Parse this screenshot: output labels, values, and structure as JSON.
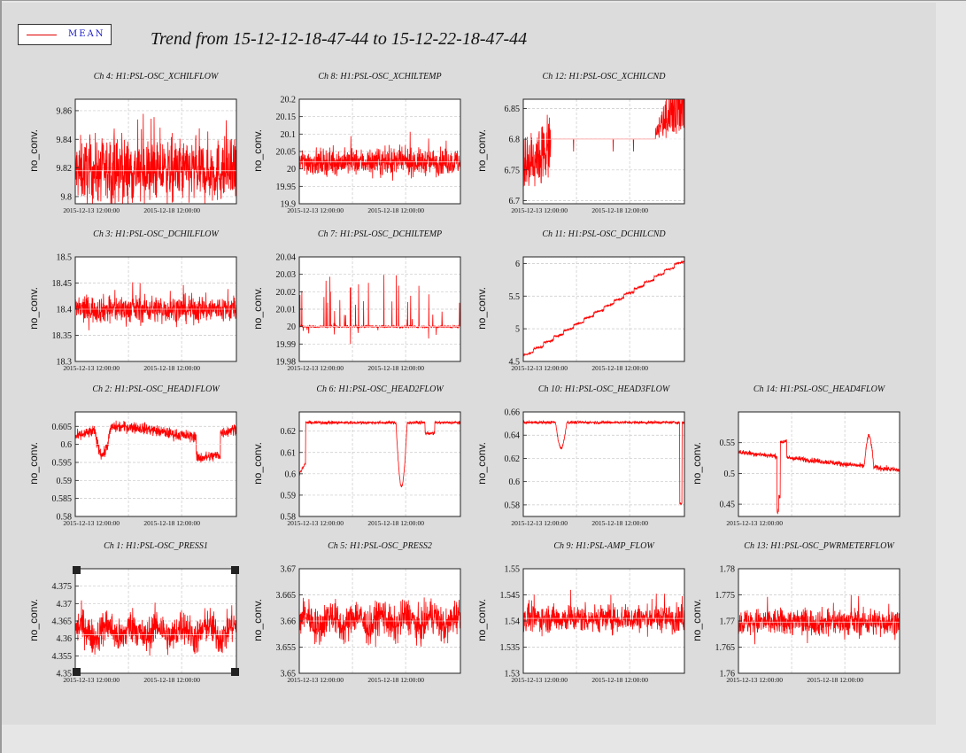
{
  "legend": {
    "label": "MEAN",
    "line_color": "#e00000"
  },
  "title": "Trend from 15-12-12-18-47-44 to 15-12-22-18-47-44",
  "colors": {
    "trace": "#ff0000",
    "mean": "#ffffff",
    "grid": "#c8c8c8"
  },
  "chart_data": [
    {
      "type": "line",
      "title": "Ch 4: H1:PSL-OSC_XCHILFLOW",
      "ylabel": "no_conv.",
      "ylim": [
        9.795,
        9.868
      ],
      "yticks": [
        "9.86",
        "9.84",
        "9.82",
        "9.8"
      ],
      "ytick_values": [
        9.86,
        9.84,
        9.82,
        9.8
      ],
      "xticks": [
        "2015-12-13 12:00:00",
        "2015-12-18 12:00:00"
      ],
      "pattern": "noise",
      "center": 9.818,
      "spread": 0.03,
      "mean": 9.818
    },
    {
      "type": "line",
      "title": "Ch 8: H1:PSL-OSC_XCHILTEMP",
      "ylabel": "no_conv.",
      "ylim": [
        19.9,
        20.2
      ],
      "yticks": [
        "20.2",
        "20.15",
        "20.1",
        "20.05",
        "20",
        "19.95",
        "19.9"
      ],
      "ytick_values": [
        20.2,
        20.15,
        20.1,
        20.05,
        20,
        19.95,
        19.9
      ],
      "xticks": [
        "2015-12-13 12:00:00",
        "2015-12-18 12:00:00"
      ],
      "pattern": "noise",
      "center": 20.02,
      "spread": 0.05,
      "mean": 20.02
    },
    {
      "type": "line",
      "title": "Ch 12: H1:PSL-OSC_XCHILCND",
      "ylabel": "no_conv.",
      "ylim": [
        6.695,
        6.865
      ],
      "yticks": [
        "6.85",
        "6.8",
        "6.75",
        "6.7"
      ],
      "ytick_values": [
        6.85,
        6.8,
        6.75,
        6.7
      ],
      "xticks": [
        "2015-12-13 12:00:00",
        "2015-12-18 12:00:00"
      ],
      "pattern": "step_cnd",
      "mean": 6.8
    },
    {
      "type": "line",
      "title": "Ch 3: H1:PSL-OSC_DCHILFLOW",
      "ylabel": "no_conv.",
      "ylim": [
        18.3,
        18.5
      ],
      "yticks": [
        "18.5",
        "18.45",
        "18.4",
        "18.35",
        "18.3"
      ],
      "ytick_values": [
        18.5,
        18.45,
        18.4,
        18.35,
        18.3
      ],
      "xticks": [
        "2015-12-13 12:00:00",
        "2015-12-18 12:00:00"
      ],
      "pattern": "noise",
      "center": 18.4,
      "spread": 0.035,
      "mean": 18.4
    },
    {
      "type": "line",
      "title": "Ch 7: H1:PSL-OSC_DCHILTEMP",
      "ylabel": "no_conv.",
      "ylim": [
        19.98,
        20.04
      ],
      "yticks": [
        "20.04",
        "20.03",
        "20.02",
        "20.01",
        "20",
        "19.99",
        "19.98"
      ],
      "ytick_values": [
        20.04,
        20.03,
        20.02,
        20.01,
        20,
        19.99,
        19.98
      ],
      "xticks": [
        "2015-12-13 12:00:00",
        "2015-12-18 12:00:00"
      ],
      "pattern": "spikes",
      "center": 20.0,
      "mean": 20.0
    },
    {
      "type": "line",
      "title": "Ch 11: H1:PSL-OSC_DCHILCND",
      "ylabel": "no_conv.",
      "ylim": [
        4.5,
        6.1
      ],
      "yticks": [
        "6",
        "5.5",
        "5",
        "4.5"
      ],
      "ytick_values": [
        6,
        5.5,
        5,
        4.5
      ],
      "xticks": [
        "2015-12-13 12:00:00",
        "2015-12-18 12:00:00"
      ],
      "pattern": "staircase",
      "start": 4.6,
      "end": 6.08
    },
    {
      "type": "line",
      "title": "Ch 2: H1:PSL-OSC_HEAD1FLOW",
      "ylabel": "no_conv.",
      "ylim": [
        0.58,
        0.609
      ],
      "yticks": [
        "0.605",
        "0.6",
        "0.595",
        "0.59",
        "0.585",
        "0.58"
      ],
      "ytick_values": [
        0.605,
        0.6,
        0.595,
        0.59,
        0.585,
        0.58
      ],
      "xticks": [
        "2015-12-13 12:00:00",
        "2015-12-18 12:00:00"
      ],
      "pattern": "head1",
      "mean": 0.6
    },
    {
      "type": "line",
      "title": "Ch 6: H1:PSL-OSC_HEAD2FLOW",
      "ylabel": "no_conv.",
      "ylim": [
        0.58,
        0.629
      ],
      "yticks": [
        "0.62",
        "0.61",
        "0.6",
        "0.59",
        "0.58"
      ],
      "ytick_values": [
        0.62,
        0.61,
        0.6,
        0.59,
        0.58
      ],
      "xticks": [
        "2015-12-13 12:00:00",
        "2015-12-18 12:00:00"
      ],
      "pattern": "head2"
    },
    {
      "type": "line",
      "title": "Ch 10: H1:PSL-OSC_HEAD3FLOW",
      "ylabel": "no_conv.",
      "ylim": [
        0.57,
        0.66
      ],
      "yticks": [
        "0.66",
        "0.64",
        "0.62",
        "0.6",
        "0.58"
      ],
      "ytick_values": [
        0.66,
        0.64,
        0.62,
        0.6,
        0.58
      ],
      "xticks": [
        "2015-12-13 12:00:00",
        "2015-12-18 12:00:00"
      ],
      "pattern": "head3"
    },
    {
      "type": "line",
      "title": "Ch 14: H1:PSL-OSC_HEAD4FLOW",
      "ylabel": "no_conv.",
      "ylim": [
        0.43,
        0.6
      ],
      "yticks": [
        "0.55",
        "0.5",
        "0.45"
      ],
      "ytick_values": [
        0.55,
        0.5,
        0.45
      ],
      "xticks": [
        "2015-12-13 12:00:00"
      ],
      "pattern": "head4"
    },
    {
      "type": "line",
      "title": "Ch 1: H1:PSL-OSC_PRESS1",
      "ylabel": "no_conv.",
      "ylim": [
        4.35,
        4.38
      ],
      "yticks": [
        "4.375",
        "4.37",
        "4.365",
        "4.36",
        "4.355",
        "4.35"
      ],
      "ytick_values": [
        4.375,
        4.37,
        4.365,
        4.36,
        4.355,
        4.35
      ],
      "xticks": [
        "2015-12-13 12:00:00",
        "2015-12-18 12:00:00"
      ],
      "pattern": "wander",
      "center": 4.362,
      "spread": 0.006,
      "mean": 4.361
    },
    {
      "type": "line",
      "title": "Ch 5: H1:PSL-OSC_PRESS2",
      "ylabel": "no_conv.",
      "ylim": [
        3.65,
        3.67
      ],
      "yticks": [
        "3.67",
        "3.665",
        "3.66",
        "3.655",
        "3.65"
      ],
      "ytick_values": [
        3.67,
        3.665,
        3.66,
        3.655,
        3.65
      ],
      "xticks": [
        "2015-12-13 12:00:00",
        "2015-12-18 12:00:00"
      ],
      "pattern": "wander",
      "center": 3.66,
      "spread": 0.004,
      "mean": 3.66
    },
    {
      "type": "line",
      "title": "Ch 9: H1:PSL-AMP_FLOW",
      "ylabel": "no_conv.",
      "ylim": [
        1.53,
        1.55
      ],
      "yticks": [
        "1.55",
        "1.545",
        "1.54",
        "1.535",
        "1.53"
      ],
      "ytick_values": [
        1.55,
        1.545,
        1.54,
        1.535,
        1.53
      ],
      "xticks": [
        "2015-12-13 12:00:00",
        "2015-12-18 12:00:00"
      ],
      "pattern": "noise",
      "center": 1.5405,
      "spread": 0.0035,
      "mean": 1.5405
    },
    {
      "type": "line",
      "title": "Ch 13: H1:PSL-OSC_PWRMETERFLOW",
      "ylabel": "no_conv.",
      "ylim": [
        1.76,
        1.78
      ],
      "yticks": [
        "1.78",
        "1.775",
        "1.77",
        "1.765",
        "1.76"
      ],
      "ytick_values": [
        1.78,
        1.775,
        1.77,
        1.765,
        1.76
      ],
      "xticks": [
        "2015-12-13 12:00:00",
        "2015-12-18 12:00:00"
      ],
      "pattern": "noise",
      "center": 1.7698,
      "spread": 0.0035,
      "mean": 1.7698
    }
  ]
}
